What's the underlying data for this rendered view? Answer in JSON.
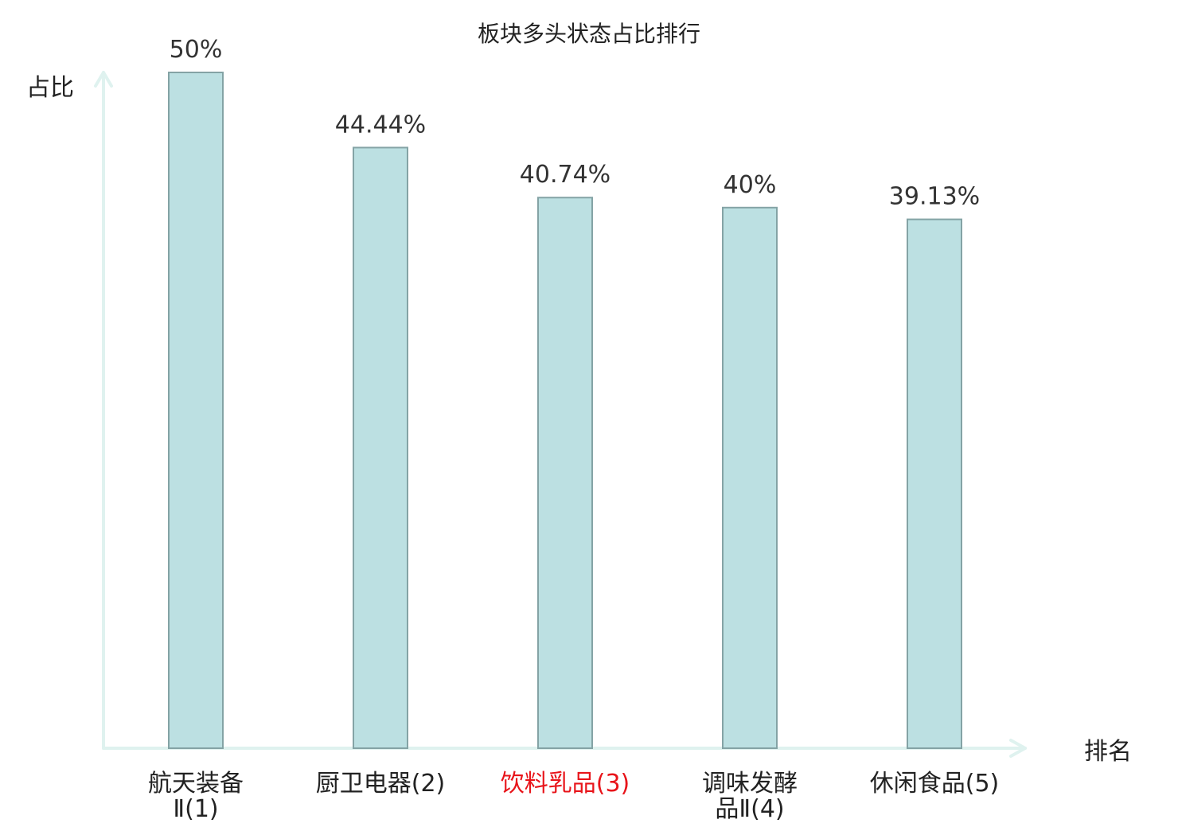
{
  "chart_data": {
    "type": "bar",
    "title": "板块多头状态占比排行",
    "xlabel": "排名",
    "ylabel": "占比",
    "ylim": [
      0,
      50
    ],
    "grid": false,
    "categories": [
      [
        "航天装备",
        "Ⅱ(1)"
      ],
      [
        "厨卫电器(2)"
      ],
      [
        "饮料乳品(3)"
      ],
      [
        "调味发酵",
        "品Ⅱ(4)"
      ],
      [
        "休闲食品(5)"
      ]
    ],
    "values": [
      50,
      44.44,
      40.74,
      40,
      39.13
    ],
    "value_labels": [
      "50%",
      "44.44%",
      "40.74%",
      "40%",
      "39.13%"
    ],
    "highlight_index": 2,
    "colors": {
      "bar_fill": "#bce0e2",
      "bar_stroke": "#84a3a5",
      "axis": "#dff2ef",
      "text": "#333333",
      "highlight_text": "#e8141a"
    }
  }
}
